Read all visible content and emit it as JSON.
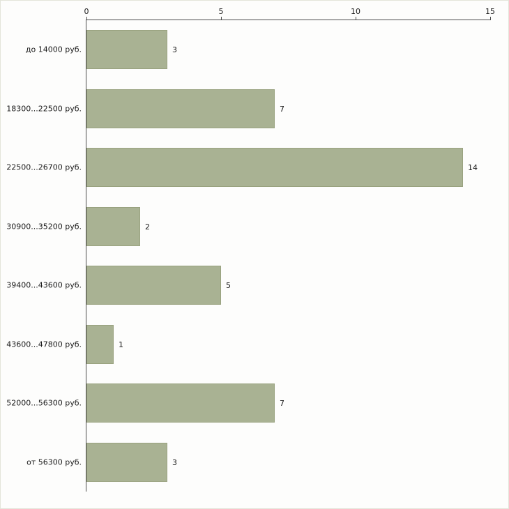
{
  "chart_data": {
    "type": "bar",
    "orientation": "horizontal",
    "title": "",
    "xlabel": "",
    "ylabel": "",
    "categories": [
      "до 14000 руб.",
      "18300...22500 руб.",
      "22500...26700 руб.",
      "30900...35200 руб.",
      "39400...43600 руб.",
      "43600...47800 руб.",
      "52000...56300 руб.",
      "от 56300 руб."
    ],
    "values": [
      3,
      7,
      14,
      2,
      5,
      1,
      7,
      3
    ],
    "xlim": [
      0,
      15
    ],
    "xticks": [
      0,
      5,
      10,
      15
    ],
    "grid": false,
    "legend": false,
    "bar_color": "#a9b293",
    "bar_border_color": "#99a27f",
    "axis_color": "#4a4a4a",
    "text_color": "#1a1a1a",
    "background_color": "#fdfdfc"
  }
}
